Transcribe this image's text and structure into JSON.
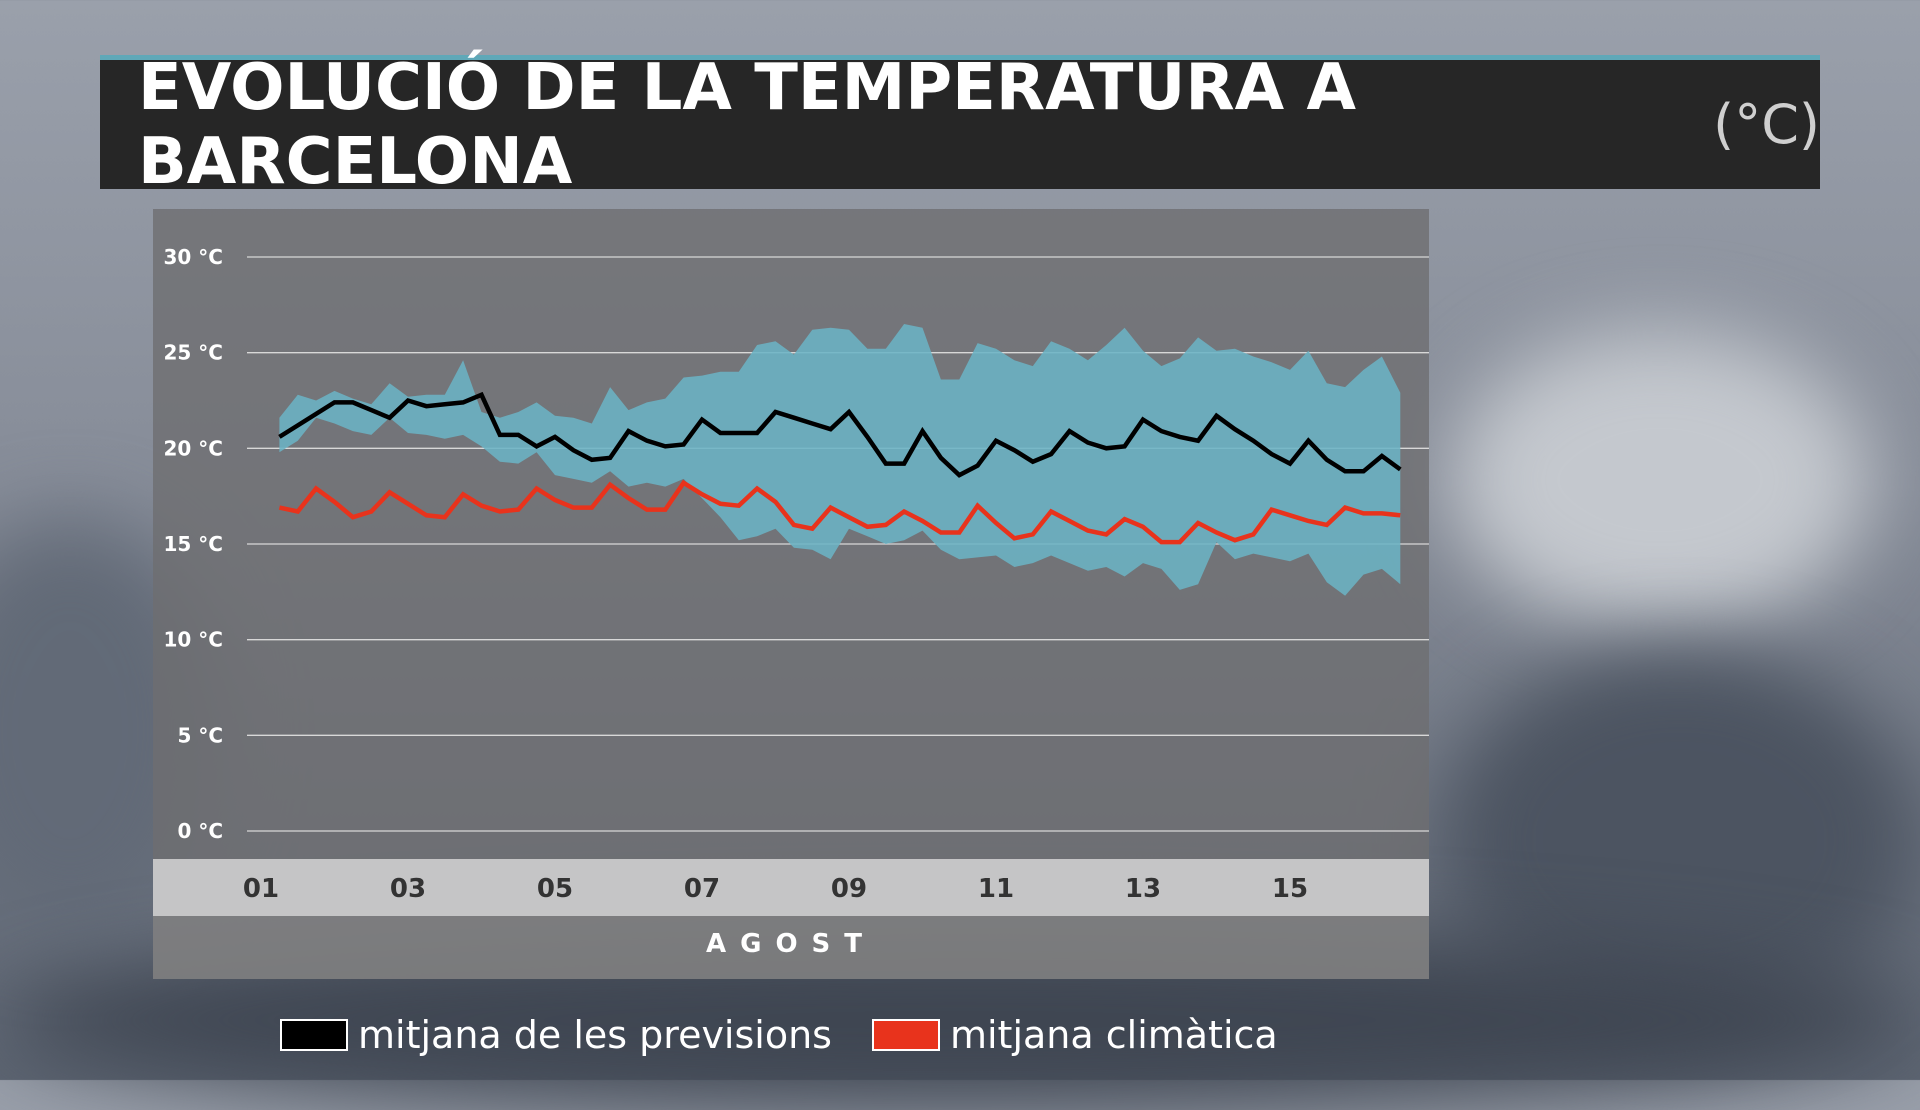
{
  "title": {
    "text": "EVOLUCIÓ DE LA TEMPERATURA A BARCELONA",
    "unit": "(°C)"
  },
  "colors": {
    "forecast_line": "#000000",
    "climate_line": "#e8331c",
    "range_band": "#6bb3c4",
    "accent": "#5fa8b8"
  },
  "chart_data": {
    "type": "line",
    "title": "EVOLUCIÓ DE LA TEMPERATURA A BARCELONA",
    "xlabel": "AGOST",
    "ylabel": "",
    "ylim": [
      0,
      30
    ],
    "x_range": [
      1,
      17.5
    ],
    "y_ticks": [
      0,
      5,
      10,
      15,
      20,
      25,
      30
    ],
    "y_tick_labels": [
      "0 °C",
      "5 °C",
      "10 °C",
      "15 °C",
      "20 °C",
      "25 °C",
      "30 °C"
    ],
    "x_ticks": [
      1,
      3,
      5,
      7,
      9,
      11,
      13,
      15
    ],
    "x_tick_labels": [
      "01",
      "03",
      "05",
      "07",
      "09",
      "11",
      "13",
      "15"
    ],
    "grid": true,
    "legend_position": "bottom",
    "x": [
      1.25,
      1.5,
      1.75,
      2.0,
      2.25,
      2.5,
      2.75,
      3.0,
      3.25,
      3.5,
      3.75,
      4.0,
      4.25,
      4.5,
      4.75,
      5.0,
      5.25,
      5.5,
      5.75,
      6.0,
      6.25,
      6.5,
      6.75,
      7.0,
      7.25,
      7.5,
      7.75,
      8.0,
      8.25,
      8.5,
      8.75,
      9.0,
      9.25,
      9.5,
      9.75,
      10.0,
      10.25,
      10.5,
      10.75,
      11.0,
      11.25,
      11.5,
      11.75,
      12.0,
      12.25,
      12.5,
      12.75,
      13.0,
      13.25,
      13.5,
      13.75,
      14.0,
      14.25,
      14.5,
      14.75,
      15.0,
      15.25,
      15.5,
      15.75,
      16.0,
      16.25,
      16.5
    ],
    "series": [
      {
        "name": "mitjana de les previsions",
        "values": [
          20.6,
          21.2,
          21.8,
          22.4,
          22.4,
          22.0,
          21.6,
          22.5,
          22.2,
          22.3,
          22.4,
          22.8,
          20.7,
          20.7,
          20.1,
          20.6,
          19.9,
          19.4,
          19.5,
          20.9,
          20.4,
          20.1,
          20.2,
          21.5,
          20.8,
          20.8,
          20.8,
          21.9,
          21.6,
          21.3,
          21.0,
          21.9,
          20.6,
          19.2,
          19.2,
          20.9,
          19.5,
          18.6,
          19.1,
          20.4,
          19.9,
          19.3,
          19.7,
          20.9,
          20.3,
          20.0,
          20.1,
          21.5,
          20.9,
          20.6,
          20.4,
          21.7,
          21.0,
          20.4,
          19.7,
          19.2,
          20.4,
          19.4,
          18.8,
          18.8,
          19.6,
          18.9
        ]
      },
      {
        "name": "mitjana climàtica",
        "values": [
          16.9,
          16.7,
          17.9,
          17.2,
          16.4,
          16.7,
          17.7,
          17.1,
          16.5,
          16.4,
          17.6,
          17.0,
          16.7,
          16.8,
          17.9,
          17.3,
          16.9,
          16.9,
          18.1,
          17.4,
          16.8,
          16.8,
          18.2,
          17.6,
          17.1,
          17.0,
          17.9,
          17.2,
          16.0,
          15.8,
          16.9,
          16.4,
          15.9,
          16.0,
          16.7,
          16.2,
          15.6,
          15.6,
          17.0,
          16.1,
          15.3,
          15.5,
          16.7,
          16.2,
          15.7,
          15.5,
          16.3,
          15.9,
          15.1,
          15.1,
          16.1,
          15.6,
          15.2,
          15.5,
          16.8,
          16.5,
          16.2,
          16.0,
          16.9,
          16.6,
          16.6,
          16.5
        ]
      }
    ],
    "band": {
      "upper": [
        21.6,
        22.8,
        22.5,
        23.0,
        22.6,
        22.3,
        23.4,
        22.7,
        22.8,
        22.8,
        24.6,
        21.9,
        21.6,
        21.9,
        22.4,
        21.7,
        21.6,
        21.3,
        23.2,
        22.0,
        22.4,
        22.6,
        23.7,
        23.8,
        24.0,
        24.0,
        25.4,
        25.6,
        24.9,
        26.2,
        26.3,
        26.2,
        25.2,
        25.2,
        26.5,
        26.3,
        23.6,
        23.6,
        25.5,
        25.2,
        24.6,
        24.3,
        25.6,
        25.2,
        24.6,
        25.4,
        26.3,
        25.1,
        24.3,
        24.7,
        25.8,
        25.1,
        25.2,
        24.8,
        24.5,
        24.1,
        25.1,
        23.4,
        23.2,
        24.1,
        24.8,
        22.9
      ],
      "lower": [
        19.8,
        20.4,
        21.6,
        21.3,
        20.9,
        20.7,
        21.6,
        20.8,
        20.7,
        20.5,
        20.7,
        20.1,
        19.3,
        19.2,
        19.8,
        18.6,
        18.4,
        18.2,
        18.8,
        18.0,
        18.2,
        18.0,
        18.4,
        17.4,
        16.4,
        15.2,
        15.4,
        15.8,
        14.8,
        14.7,
        14.2,
        15.8,
        15.4,
        15.0,
        15.2,
        15.7,
        14.7,
        14.2,
        14.3,
        14.4,
        13.8,
        14.0,
        14.4,
        14.0,
        13.6,
        13.8,
        13.3,
        14.0,
        13.7,
        12.6,
        12.9,
        15.1,
        14.2,
        14.5,
        14.3,
        14.1,
        14.5,
        13.0,
        12.3,
        13.4,
        13.7,
        12.9
      ]
    }
  },
  "legend": [
    {
      "label": "mitjana de les previsions",
      "color": "#000000"
    },
    {
      "label": "mitjana climàtica",
      "color": "#e8331c"
    }
  ]
}
